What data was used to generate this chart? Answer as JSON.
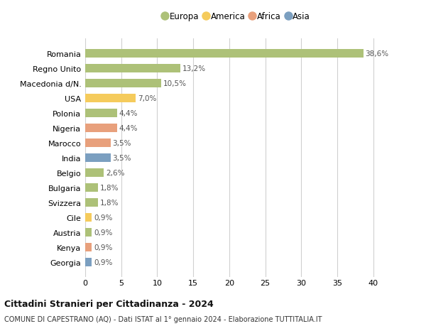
{
  "countries": [
    "Romania",
    "Regno Unito",
    "Macedonia d/N.",
    "USA",
    "Polonia",
    "Nigeria",
    "Marocco",
    "India",
    "Belgio",
    "Bulgaria",
    "Svizzera",
    "Cile",
    "Austria",
    "Kenya",
    "Georgia"
  ],
  "values": [
    38.6,
    13.2,
    10.5,
    7.0,
    4.4,
    4.4,
    3.5,
    3.5,
    2.6,
    1.8,
    1.8,
    0.9,
    0.9,
    0.9,
    0.9
  ],
  "labels": [
    "38,6%",
    "13,2%",
    "10,5%",
    "7,0%",
    "4,4%",
    "4,4%",
    "3,5%",
    "3,5%",
    "2,6%",
    "1,8%",
    "1,8%",
    "0,9%",
    "0,9%",
    "0,9%",
    "0,9%"
  ],
  "colors": [
    "#adc178",
    "#adc178",
    "#adc178",
    "#f5cb5c",
    "#adc178",
    "#e8a07c",
    "#e8a07c",
    "#7b9fc0",
    "#adc178",
    "#adc178",
    "#adc178",
    "#f5cb5c",
    "#adc178",
    "#e8a07c",
    "#7b9fc0"
  ],
  "legend_labels": [
    "Europa",
    "America",
    "Africa",
    "Asia"
  ],
  "legend_colors": [
    "#adc178",
    "#f5cb5c",
    "#e8a07c",
    "#7b9fc0"
  ],
  "title1": "Cittadini Stranieri per Cittadinanza - 2024",
  "title2": "COMUNE DI CAPESTRANO (AQ) - Dati ISTAT al 1° gennaio 2024 - Elaborazione TUTTITALIA.IT",
  "xlim": [
    0,
    42
  ],
  "xticks": [
    0,
    5,
    10,
    15,
    20,
    25,
    30,
    35,
    40
  ],
  "background_color": "#ffffff",
  "grid_color": "#d0d0d0",
  "bar_height": 0.55
}
